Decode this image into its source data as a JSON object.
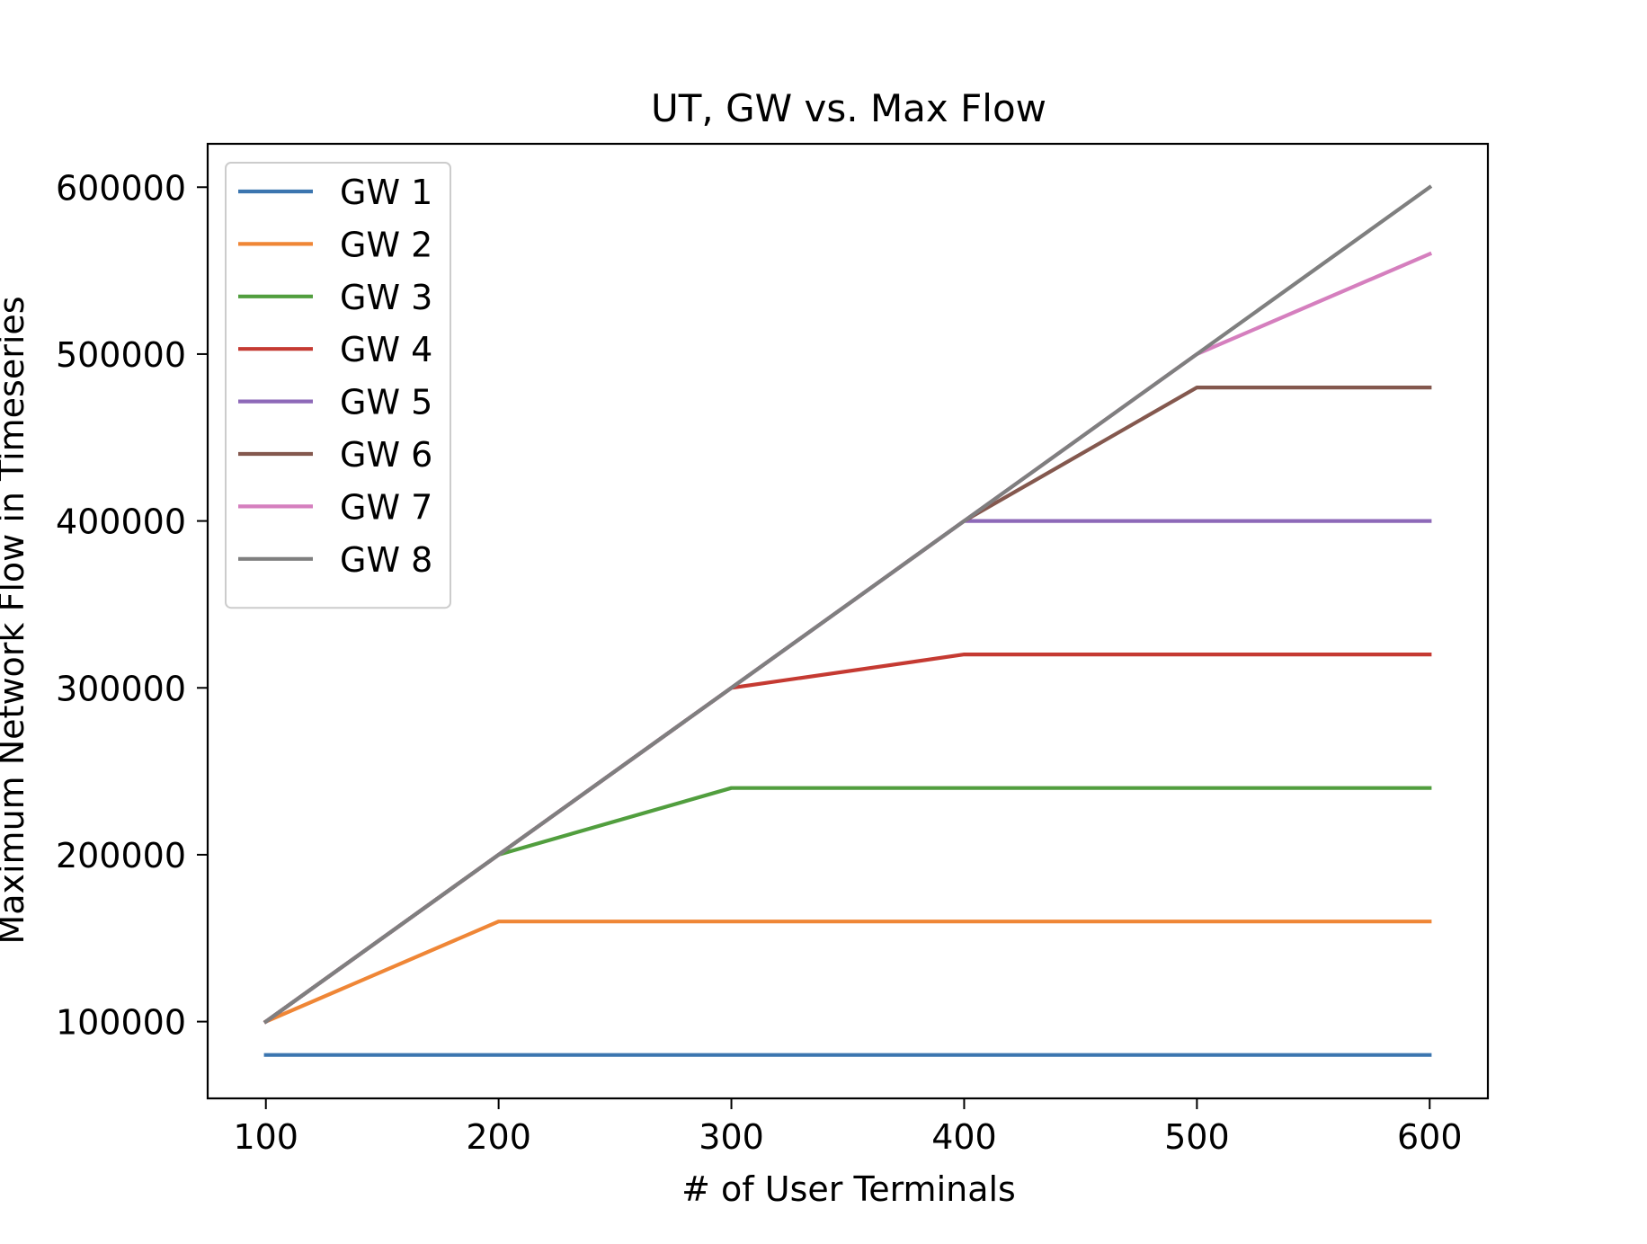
{
  "chart_data": {
    "type": "line",
    "title": "UT, GW vs. Max Flow",
    "xlabel": "# of User Terminals",
    "ylabel": "Maximum Network Flow in Timeseries",
    "x": [
      100,
      200,
      300,
      400,
      500,
      600
    ],
    "xlim": [
      75,
      625
    ],
    "ylim": [
      54000,
      626000
    ],
    "xticks": [
      100,
      200,
      300,
      400,
      500,
      600
    ],
    "yticks": [
      100000,
      200000,
      300000,
      400000,
      500000,
      600000
    ],
    "xtick_labels": [
      "100",
      "200",
      "300",
      "400",
      "500",
      "600"
    ],
    "ytick_labels": [
      "100000",
      "200000",
      "300000",
      "400000",
      "500000",
      "600000"
    ],
    "grid": false,
    "legend_position": "upper-left",
    "series": [
      {
        "name": "GW 1",
        "color": "#3b75af",
        "values": [
          80000,
          80000,
          80000,
          80000,
          80000,
          80000
        ]
      },
      {
        "name": "GW 2",
        "color": "#ef8636",
        "values": [
          100000,
          160000,
          160000,
          160000,
          160000,
          160000
        ]
      },
      {
        "name": "GW 3",
        "color": "#519e3e",
        "values": [
          100000,
          200000,
          240000,
          240000,
          240000,
          240000
        ]
      },
      {
        "name": "GW 4",
        "color": "#c53a32",
        "values": [
          100000,
          200000,
          300000,
          320000,
          320000,
          320000
        ]
      },
      {
        "name": "GW 5",
        "color": "#8d69b8",
        "values": [
          100000,
          200000,
          300000,
          400000,
          400000,
          400000
        ]
      },
      {
        "name": "GW 6",
        "color": "#84584e",
        "values": [
          100000,
          200000,
          300000,
          400000,
          480000,
          480000
        ]
      },
      {
        "name": "GW 7",
        "color": "#d57fbe",
        "values": [
          100000,
          200000,
          300000,
          400000,
          500000,
          560000
        ]
      },
      {
        "name": "GW 8",
        "color": "#7f7f7f",
        "values": [
          100000,
          200000,
          300000,
          400000,
          500000,
          600000
        ]
      }
    ]
  }
}
